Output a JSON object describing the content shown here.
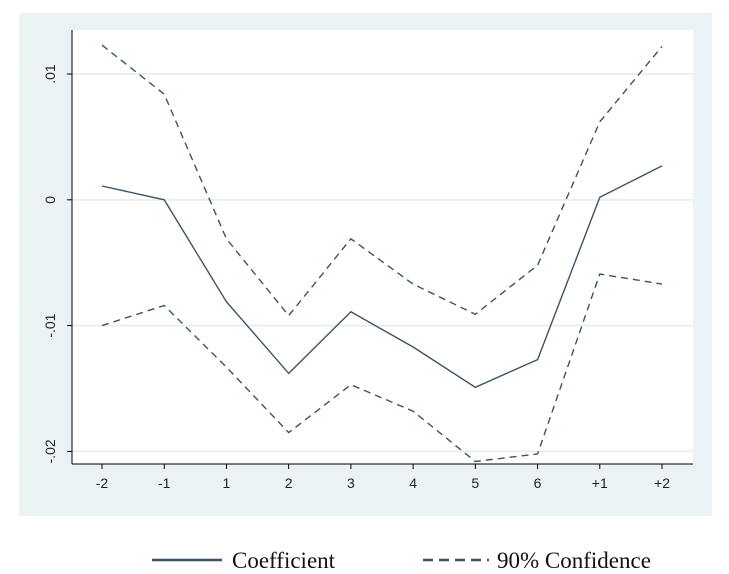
{
  "chart_data": {
    "type": "line",
    "categories": [
      "-2",
      "-1",
      "1",
      "2",
      "3",
      "4",
      "5",
      "6",
      "+1",
      "+2"
    ],
    "series": [
      {
        "name": "Coefficient",
        "style": "solid",
        "color": "#3d5268",
        "values": [
          0.0011,
          0.0,
          -0.0081,
          -0.0138,
          -0.0089,
          -0.0117,
          -0.0149,
          -0.0127,
          0.0002,
          0.0027
        ]
      },
      {
        "name": "90% Confidence",
        "style": "dashed",
        "color": "#3d5268",
        "values": [
          0.0123,
          0.0084,
          -0.0031,
          -0.0092,
          -0.0031,
          -0.0067,
          -0.0091,
          -0.0052,
          0.0062,
          0.0122
        ]
      },
      {
        "name": "90% Confidence",
        "style": "dashed",
        "color": "#3d5268",
        "values": [
          -0.01,
          -0.0084,
          -0.0133,
          -0.0185,
          -0.0147,
          -0.0168,
          -0.0208,
          -0.0202,
          -0.0059,
          -0.0067
        ]
      }
    ],
    "yticks": [
      "-.02",
      "-.01",
      "0",
      ".01"
    ],
    "ytick_values": [
      -0.02,
      -0.01,
      0,
      0.01
    ],
    "ylim": [
      -0.021,
      0.0135
    ],
    "grid": true,
    "legend": {
      "position": "bottom",
      "entries": [
        {
          "label": "Coefficient",
          "style": "solid"
        },
        {
          "label": "90% Confidence",
          "style": "dashed"
        }
      ]
    },
    "colors": {
      "panel_background": "#eaf2f3",
      "plot_background": "#ffffff",
      "grid": "#e6ecec",
      "axis": "#000000"
    }
  }
}
